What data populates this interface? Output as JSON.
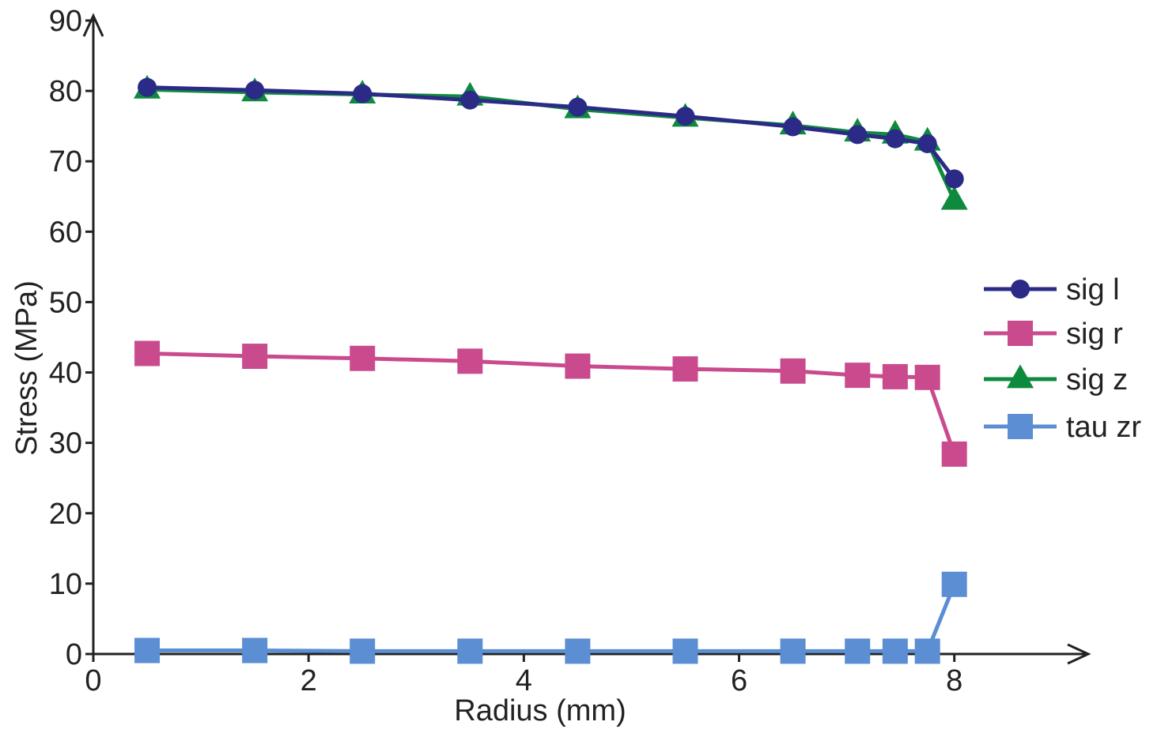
{
  "chart_data": {
    "type": "line",
    "title": "",
    "xlabel": "Radius (mm)",
    "ylabel": "Stress (MPa)",
    "xlim": [
      0,
      9.2
    ],
    "ylim": [
      0,
      90
    ],
    "xticks": [
      0,
      2,
      4,
      6,
      8
    ],
    "yticks": [
      0,
      10,
      20,
      30,
      40,
      50,
      60,
      70,
      80,
      90
    ],
    "grid": false,
    "legend": "right",
    "x": [
      0.5,
      1.5,
      2.5,
      3.5,
      4.5,
      5.5,
      6.5,
      7.1,
      7.45,
      7.75,
      8.0
    ],
    "series": [
      {
        "name": "sig l",
        "marker": "circle",
        "color": "#2b2a86",
        "values": [
          80.5,
          80.1,
          79.6,
          78.7,
          77.7,
          76.4,
          74.9,
          73.8,
          73.2,
          72.5,
          67.5
        ]
      },
      {
        "name": "sig r",
        "marker": "square",
        "color": "#c94b8e",
        "values": [
          42.7,
          42.3,
          42.0,
          41.6,
          40.9,
          40.5,
          40.2,
          39.6,
          39.4,
          39.3,
          28.4
        ]
      },
      {
        "name": "sig z",
        "marker": "triangle",
        "color": "#0e8a3e",
        "values": [
          80.2,
          79.8,
          79.5,
          79.2,
          77.4,
          76.2,
          75.1,
          74.1,
          73.8,
          72.8,
          64.4
        ]
      },
      {
        "name": "tau zr",
        "marker": "square",
        "color": "#5b8ed3",
        "values": [
          0.5,
          0.5,
          0.4,
          0.4,
          0.4,
          0.4,
          0.4,
          0.4,
          0.4,
          0.4,
          9.9
        ]
      }
    ]
  }
}
